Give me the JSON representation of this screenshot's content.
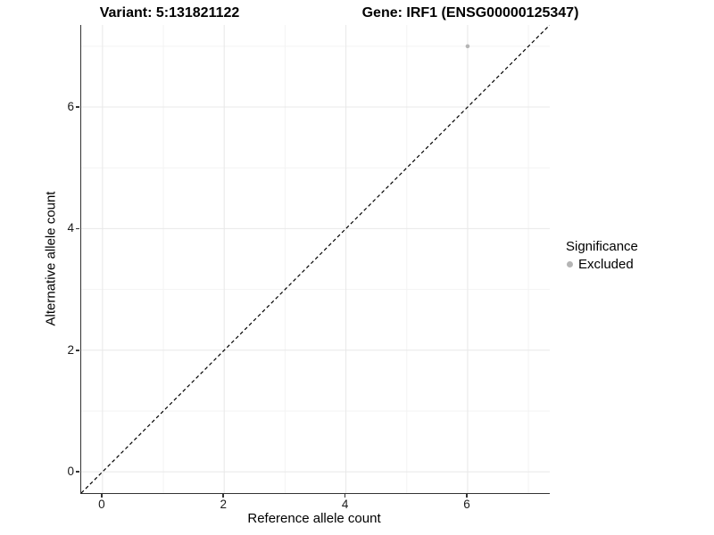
{
  "figure": {
    "title_left": "Variant: 5:131821122",
    "title_right": "Gene: IRF1 (ENSG00000125347)"
  },
  "axes": {
    "x_label": "Reference allele count",
    "y_label": "Alternative allele count"
  },
  "legend": {
    "title": "Significance",
    "items": [
      {
        "label": "Excluded",
        "color": "#b5b5b5",
        "marker": "circle-icon"
      }
    ]
  },
  "chart_data": {
    "type": "scatter",
    "title": "Variant: 5:131821122 | Gene: IRF1 (ENSG00000125347)",
    "xlabel": "Reference allele count",
    "ylabel": "Alternative allele count",
    "xlim": [
      -0.35,
      7.35
    ],
    "ylim": [
      -0.35,
      7.35
    ],
    "x_major_ticks": [
      0,
      2,
      4,
      6
    ],
    "x_minor_ticks": [
      1,
      3,
      5,
      7
    ],
    "y_major_ticks": [
      0,
      2,
      4,
      6
    ],
    "y_minor_ticks": [
      1,
      3,
      5,
      7
    ],
    "grid": "major and minor gridlines on",
    "legend_position": "right",
    "legend_title": "Significance",
    "series": [
      {
        "name": "Excluded",
        "color": "#b5b5b5",
        "marker": "circle",
        "points": [
          {
            "x": 6,
            "y": 7
          }
        ]
      }
    ],
    "reference_line": {
      "kind": "identity y=x",
      "style": "dashed",
      "color": "#000000",
      "x": [
        -0.35,
        7.35
      ],
      "y": [
        -0.35,
        7.35
      ]
    },
    "colors": {
      "background": "#ffffff",
      "grid_major": "#e8e8e8",
      "grid_minor": "#f3f3f3",
      "axis_line": "#333333",
      "point": "#b5b5b5",
      "text": "#000000"
    }
  }
}
